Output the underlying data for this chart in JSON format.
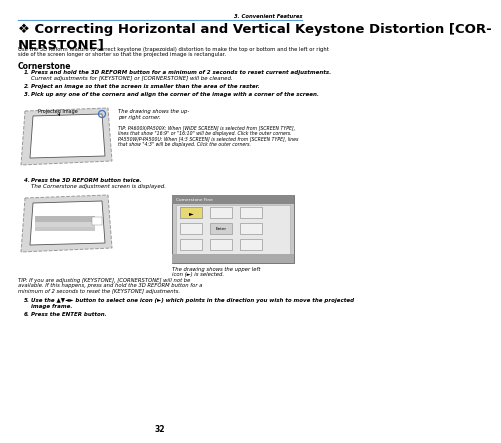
{
  "page_num": "32",
  "chapter": "3. Convenient Features",
  "title": "❖ Correcting Horizontal and Vertical Keystone Distortion [COR-\nNERSTONE]",
  "intro_line1": "Use the 3D Reform feature to correct keystone (trapezoidal) distortion to make the top or bottom and the left or right",
  "intro_line2": "side of the screen longer or shorter so that the projected image is rectangular.",
  "section": "Cornerstone",
  "item1_bold": "Press and hold the 3D REFORM button for a minimum of 2 seconds to reset current adjustments.",
  "item1_normal": "Current adjustments for [KEYSTONE] or [CORNERSTONE] will be cleaned.",
  "item2_bold": "Project an image so that the screen is smaller than the area of the raster.",
  "item3_bold": "Pick up any one of the corners and align the corner of the image with a corner of the screen.",
  "label_projected": "Projected image",
  "caption1_line1": "The drawing shows the up-",
  "caption1_line2": "per right corner.",
  "tip1_line1": "TIP: PA600X/PA500X: When [WIDE SCREEN] is selected from [SCREEN TYPE],",
  "tip1_line2": "lines that show \"16:9\" or \"16:10\" will be displayed. Click the outer corners.",
  "tip1_line3": "PA550W/P-PA500U: When [4:3 SCREEN] is selected from [SCREEN TYPE], lines",
  "tip1_line4": "that show \"4:3\" will be displayed. Click the outer corners.",
  "item4_bold": "Press the 3D REFORM button twice.",
  "item4_normal": "The Cornerstone adjustment screen is displayed.",
  "ui_title": "Cornerstone Fine",
  "ui_enter": "Enter",
  "caption2_line1": "The drawing shows the upper left",
  "caption2_line2": "icon (►) is selected.",
  "tip2_line1": "TIP: If you are adjusting [KEYSTONE], [CORNERSTONE] will not be",
  "tip2_line2": "available. If this happens, press and hold the 3D REFORM button for a",
  "tip2_line3": "minimum of 2 seconds to reset the [KEYSTONE] adjustments.",
  "item5_bold_line1": "Use the ▲▼◄► button to select one icon (►) which points in the direction you wish to move the projected",
  "item5_bold_line2": "image frame.",
  "item6_bold": "Press the ENTER button.",
  "bg_color": "#ffffff",
  "line_color": "#5b9bd5",
  "text_dark": "#000000",
  "gray_mid": "#888888",
  "gray_light": "#cccccc",
  "gray_lighter": "#e8e8e8",
  "gray_dark": "#555555"
}
